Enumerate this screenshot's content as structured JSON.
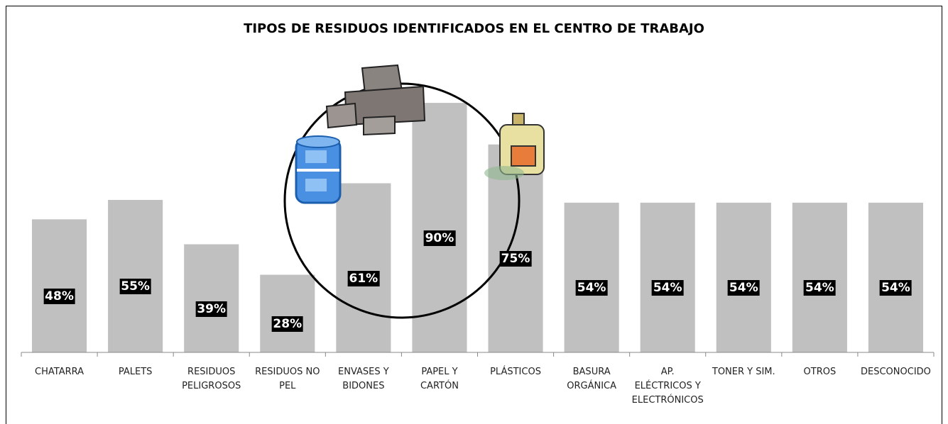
{
  "chart_data": {
    "type": "bar",
    "title": "TIPOS DE RESIDUOS IDENTIFICADOS EN EL CENTRO DE TRABAJO",
    "categories": [
      "CHATARRA",
      "PALETS",
      "RESIDUOS PELIGROSOS",
      "RESIDUOS NO PEL",
      "ENVASES Y BIDONES",
      "PAPEL Y CARTÓN",
      "PLÁSTICOS",
      "BASURA ORGÁNICA",
      "AP. ELÉCTRICOS Y ELECTRÓNICOS",
      "TONER Y SIM.",
      "OTROS",
      "DESCONOCIDO"
    ],
    "values": [
      48,
      55,
      39,
      28,
      61,
      90,
      75,
      54,
      54,
      54,
      54,
      54
    ],
    "value_labels": [
      "48%",
      "55%",
      "39%",
      "28%",
      "61%",
      "90%",
      "75%",
      "54%",
      "54%",
      "54%",
      "54%",
      "54%"
    ],
    "color": "#c0c0c0",
    "ylim": [
      0,
      100
    ]
  }
}
